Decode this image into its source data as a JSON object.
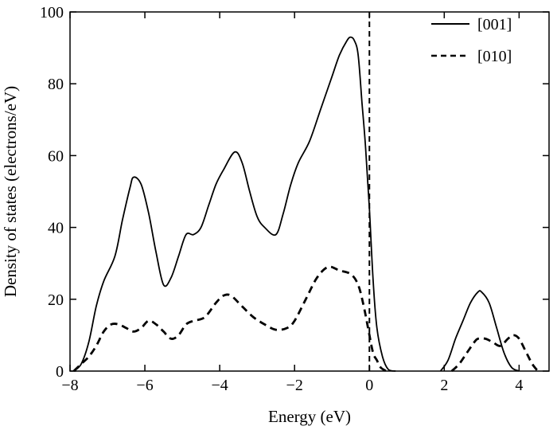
{
  "chart_data": {
    "type": "line",
    "xlabel": "Energy (eV)",
    "ylabel": "Density of states (electrons/eV)",
    "xlim": [
      -8,
      4.8
    ],
    "ylim": [
      0,
      100
    ],
    "xticks": [
      -8,
      -6,
      -4,
      -2,
      0,
      2,
      4
    ],
    "yticks": [
      0,
      20,
      40,
      60,
      80,
      100
    ],
    "xtick_labels": [
      "−8",
      "−6",
      "−4",
      "−2",
      "0",
      "2",
      "4"
    ],
    "ytick_labels": [
      "0",
      "20",
      "40",
      "60",
      "80",
      "100"
    ],
    "vline": {
      "x": 0,
      "style": "dashed"
    },
    "legend_position": "top-right",
    "series": [
      {
        "name": "[001]",
        "style": "solid",
        "segments": [
          [
            [
              -7.9,
              0
            ],
            [
              -7.7,
              2
            ],
            [
              -7.5,
              8
            ],
            [
              -7.3,
              18
            ],
            [
              -7.1,
              25
            ],
            [
              -6.8,
              32
            ],
            [
              -6.6,
              42
            ],
            [
              -6.4,
              51
            ],
            [
              -6.3,
              54
            ],
            [
              -6.1,
              52
            ],
            [
              -5.9,
              44
            ],
            [
              -5.7,
              33
            ],
            [
              -5.5,
              24
            ],
            [
              -5.3,
              26
            ],
            [
              -5.1,
              32
            ],
            [
              -4.9,
              38
            ],
            [
              -4.7,
              38
            ],
            [
              -4.5,
              40
            ],
            [
              -4.3,
              46
            ],
            [
              -4.1,
              52
            ],
            [
              -3.9,
              56
            ],
            [
              -3.6,
              61
            ],
            [
              -3.4,
              58
            ],
            [
              -3.2,
              50
            ],
            [
              -3.0,
              43
            ],
            [
              -2.8,
              40
            ],
            [
              -2.5,
              38
            ],
            [
              -2.3,
              44
            ],
            [
              -2.1,
              52
            ],
            [
              -1.9,
              58
            ],
            [
              -1.6,
              64
            ],
            [
              -1.3,
              73
            ],
            [
              -1.0,
              82
            ],
            [
              -0.8,
              88
            ],
            [
              -0.6,
              92
            ],
            [
              -0.5,
              93
            ],
            [
              -0.4,
              92
            ],
            [
              -0.3,
              88
            ],
            [
              -0.2,
              75
            ],
            [
              -0.1,
              62
            ],
            [
              0.0,
              45
            ],
            [
              0.1,
              25
            ],
            [
              0.2,
              12
            ],
            [
              0.35,
              4
            ],
            [
              0.5,
              0.5
            ],
            [
              0.7,
              0
            ]
          ],
          [
            [
              1.9,
              0
            ],
            [
              2.1,
              3
            ],
            [
              2.3,
              9
            ],
            [
              2.5,
              14
            ],
            [
              2.7,
              19
            ],
            [
              2.9,
              22
            ],
            [
              3.0,
              22
            ],
            [
              3.2,
              19
            ],
            [
              3.4,
              12
            ],
            [
              3.6,
              5
            ],
            [
              3.8,
              1
            ],
            [
              4.0,
              0
            ]
          ]
        ]
      },
      {
        "name": "[010]",
        "style": "dashed",
        "segments": [
          [
            [
              -7.9,
              0
            ],
            [
              -7.7,
              2
            ],
            [
              -7.5,
              4
            ],
            [
              -7.3,
              7
            ],
            [
              -7.1,
              11
            ],
            [
              -6.9,
              13
            ],
            [
              -6.7,
              13
            ],
            [
              -6.5,
              12
            ],
            [
              -6.3,
              11
            ],
            [
              -6.1,
              12
            ],
            [
              -5.9,
              14
            ],
            [
              -5.7,
              13
            ],
            [
              -5.5,
              11
            ],
            [
              -5.3,
              9
            ],
            [
              -5.1,
              10
            ],
            [
              -4.9,
              13
            ],
            [
              -4.7,
              14
            ],
            [
              -4.4,
              15
            ],
            [
              -4.1,
              19
            ],
            [
              -3.9,
              21
            ],
            [
              -3.7,
              21
            ],
            [
              -3.4,
              18
            ],
            [
              -3.1,
              15
            ],
            [
              -2.8,
              13
            ],
            [
              -2.5,
              11.5
            ],
            [
              -2.2,
              12
            ],
            [
              -2.0,
              14
            ],
            [
              -1.7,
              20
            ],
            [
              -1.4,
              26
            ],
            [
              -1.1,
              29
            ],
            [
              -0.8,
              28
            ],
            [
              -0.5,
              27
            ],
            [
              -0.3,
              24
            ],
            [
              -0.15,
              18
            ],
            [
              0.0,
              10
            ],
            [
              0.1,
              5
            ],
            [
              0.2,
              3
            ],
            [
              0.3,
              1
            ],
            [
              0.45,
              0
            ]
          ],
          [
            [
              2.2,
              0
            ],
            [
              2.4,
              2
            ],
            [
              2.6,
              5
            ],
            [
              2.8,
              8
            ],
            [
              2.9,
              9
            ],
            [
              3.1,
              9
            ],
            [
              3.3,
              8
            ],
            [
              3.5,
              7
            ],
            [
              3.7,
              9
            ],
            [
              3.85,
              10
            ],
            [
              4.0,
              9
            ],
            [
              4.2,
              5
            ],
            [
              4.35,
              2
            ],
            [
              4.5,
              0
            ]
          ]
        ]
      }
    ]
  }
}
